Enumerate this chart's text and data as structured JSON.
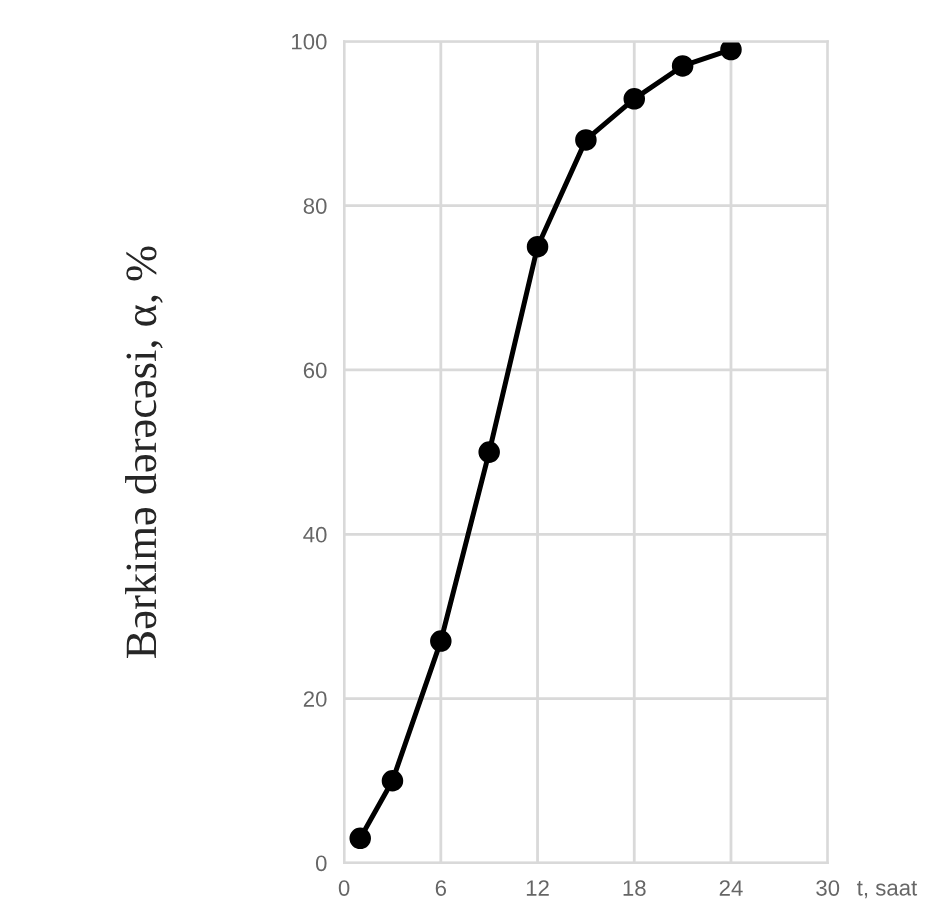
{
  "chart_data": {
    "type": "line",
    "xlabel": "t, saat",
    "ylabel": "Bərkimə dərəcəsi, α, %",
    "x": [
      1,
      3,
      6,
      9,
      12,
      15,
      18,
      21,
      24
    ],
    "series": [
      {
        "color": "#000000",
        "values": [
          3,
          10,
          27,
          50,
          75,
          88,
          93,
          97,
          99
        ]
      }
    ],
    "xlim": [
      0,
      30
    ],
    "xticks": [
      0,
      6,
      12,
      18,
      24,
      30
    ],
    "ylim": [
      0,
      100
    ],
    "yticks": [
      0,
      20,
      40,
      60,
      80,
      100
    ],
    "grid": true,
    "marker": "circle",
    "line_style": "solid"
  }
}
